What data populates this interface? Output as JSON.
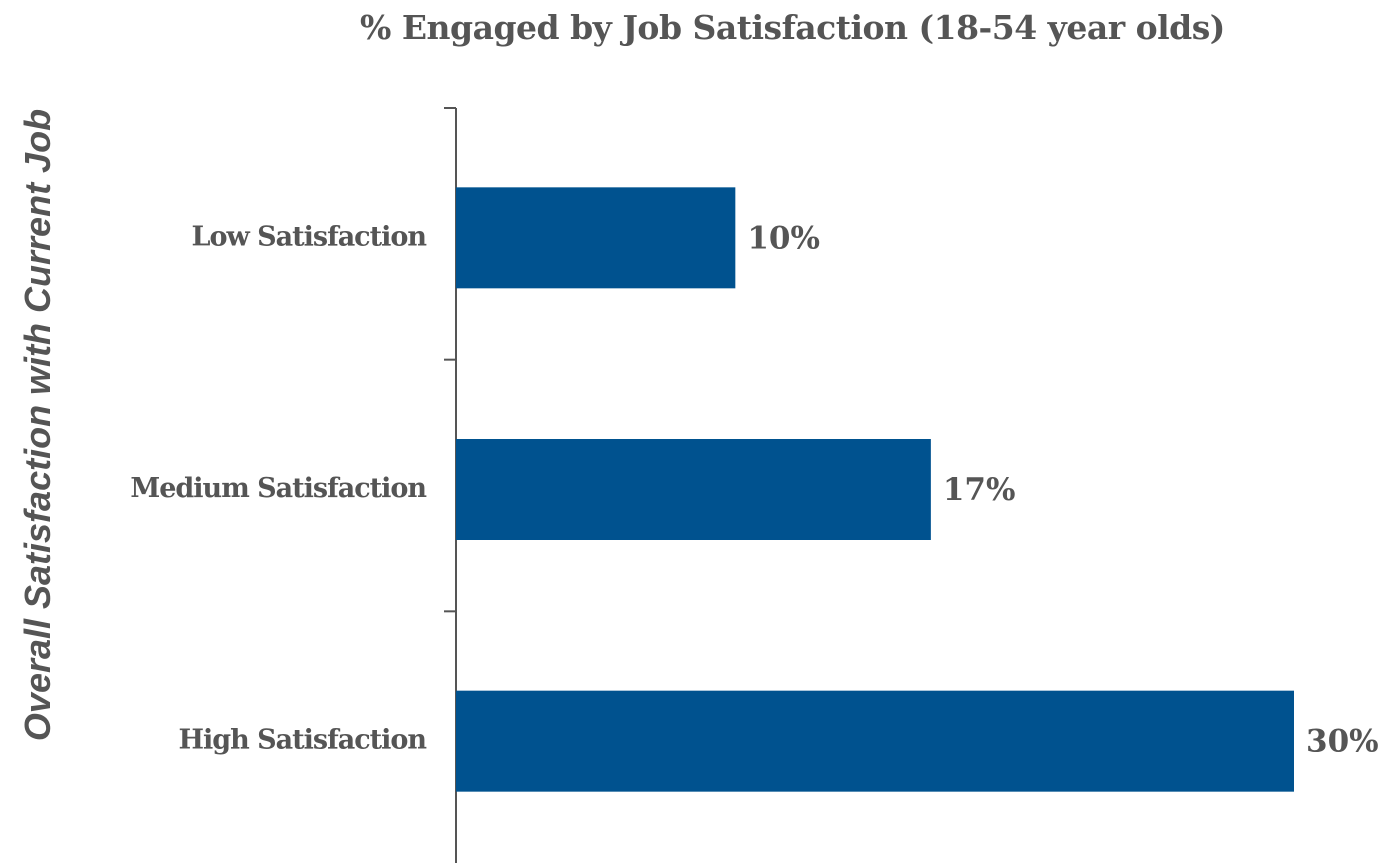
{
  "chart_data": {
    "type": "bar",
    "orientation": "horizontal",
    "title": "% Engaged by Job Satisfaction (18-54 year olds)",
    "ylabel": "Overall Satisfaction with Current Job",
    "xlabel": "",
    "categories": [
      "Low Satisfaction",
      "Medium Satisfaction",
      "High Satisfaction"
    ],
    "values": [
      10,
      17,
      30
    ],
    "value_labels": [
      "10%",
      "17%",
      "30%"
    ],
    "xlim": [
      0,
      30
    ],
    "grid": false,
    "legend": "none",
    "bar_color": "#00528F"
  }
}
